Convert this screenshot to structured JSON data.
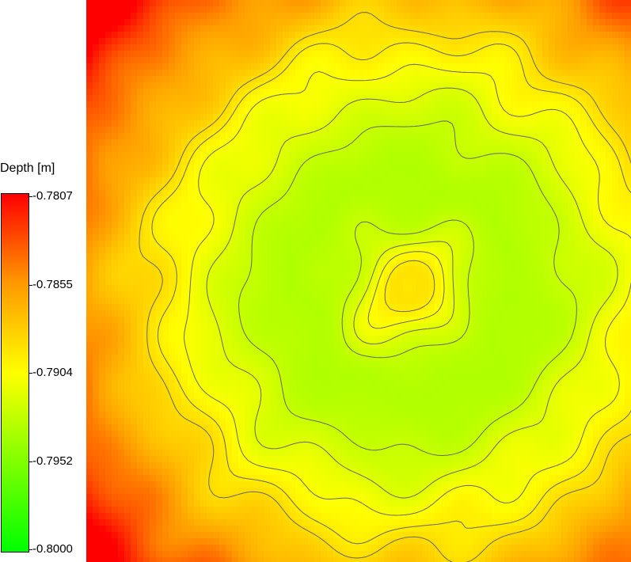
{
  "chart_data": {
    "type": "heatmap",
    "title": "",
    "colorbar": {
      "label": "Depth [m]",
      "ticks": [
        "-0.7807",
        "-0.7855",
        "-0.7904",
        "-0.7952",
        "-0.8000"
      ],
      "min": -0.8,
      "max": -0.7807,
      "colors": [
        "#00ff00",
        "#80ff00",
        "#ffff00",
        "#ff9900",
        "#ff0000"
      ]
    },
    "field": {
      "center_value": -0.789,
      "ring_value": -0.7935,
      "corner_value": -0.7845,
      "contour_levels": [
        -0.7925,
        -0.7915,
        -0.7905,
        -0.7895,
        -0.7887
      ]
    },
    "contour_color": "#666666"
  }
}
